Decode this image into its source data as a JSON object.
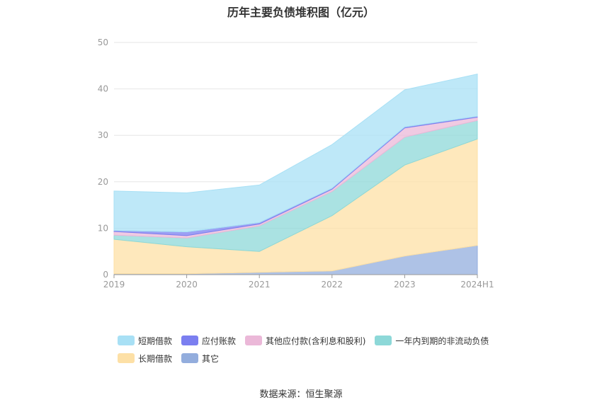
{
  "title": "历年主要负债堆积图（亿元）",
  "source_label": "数据来源：恒生聚源",
  "chart_data": {
    "type": "area",
    "stacked": true,
    "title": "历年主要负债堆积图（亿元）",
    "x": [
      "2019",
      "2020",
      "2021",
      "2022",
      "2023",
      "2024H1"
    ],
    "ylim": [
      0,
      50
    ],
    "yticks": [
      0,
      10,
      20,
      30,
      40,
      50
    ],
    "grid": true,
    "legend_position": "bottom",
    "stack_order": [
      "其它",
      "长期借款",
      "一年内到期的非流动负债",
      "其他应付款(含利息和股利)",
      "应付账款",
      "短期借款"
    ],
    "legend_rows": [
      [
        "短期借款",
        "应付账款",
        "其他应付款(含利息和股利)",
        "一年内到期的非流动负债"
      ],
      [
        "长期借款",
        "其它"
      ]
    ],
    "series": [
      {
        "name": "短期借款",
        "color": "#a8e0f5",
        "values": [
          8.5,
          8.4,
          8.1,
          9.4,
          8.0,
          9.1
        ]
      },
      {
        "name": "应付账款",
        "color": "#7b7ff0",
        "values": [
          0.2,
          0.8,
          0.3,
          0.2,
          0.2,
          0.2
        ]
      },
      {
        "name": "其他应付款(含利息和股利)",
        "color": "#ebb8d8",
        "values": [
          0.8,
          0.5,
          0.4,
          0.5,
          2.0,
          0.7
        ]
      },
      {
        "name": "一年内到期的非流动负债",
        "color": "#8dd8d8",
        "values": [
          0.9,
          1.9,
          5.5,
          5.2,
          6.0,
          4.0
        ]
      },
      {
        "name": "长期借款",
        "color": "#fde0a6",
        "values": [
          7.4,
          5.8,
          4.5,
          11.9,
          19.6,
          22.9
        ]
      },
      {
        "name": "其它",
        "color": "#93addd",
        "values": [
          0.2,
          0.2,
          0.5,
          0.8,
          4.0,
          6.3
        ]
      }
    ]
  }
}
